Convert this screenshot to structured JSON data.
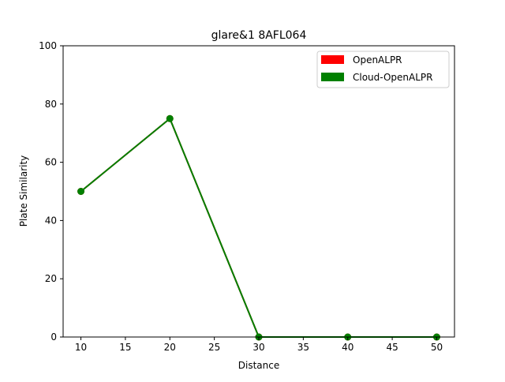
{
  "chart_data": {
    "type": "line",
    "title": "glare&1 8AFL064",
    "xlabel": "Distance",
    "ylabel": "Plate Similarity",
    "xlim": [
      8,
      52
    ],
    "ylim": [
      0,
      100
    ],
    "xticks": [
      10,
      15,
      20,
      25,
      30,
      35,
      40,
      45,
      50
    ],
    "yticks": [
      0,
      20,
      40,
      60,
      80,
      100
    ],
    "x": [
      10,
      20,
      30,
      40,
      50
    ],
    "series": [
      {
        "name": "OpenALPR",
        "color": "#ff0000",
        "values": [
          50,
          75,
          0,
          0,
          0
        ]
      },
      {
        "name": "Cloud-OpenALPR",
        "color": "#008000",
        "values": [
          50,
          75,
          0,
          0,
          0
        ]
      }
    ],
    "legend": "top-right",
    "grid": false
  }
}
